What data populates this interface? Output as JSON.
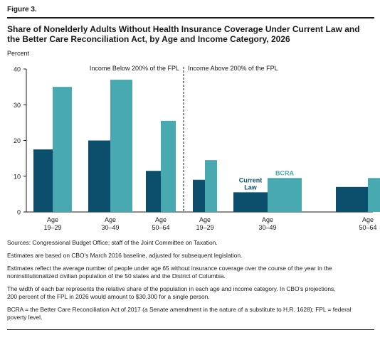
{
  "figure_label": "Figure 3.",
  "title_lines": [
    "Share of Nonelderly Adults Without Health Insurance Coverage Under Current Law and",
    "the Better Care Reconciliation Act, by Age and Income Category, 2026"
  ],
  "y_unit": "Percent",
  "chart_data": {
    "type": "bar",
    "ylabel": "Percent",
    "ylim": [
      0,
      40
    ],
    "yticks": [
      0,
      10,
      20,
      30,
      40
    ],
    "grid": false,
    "panels": [
      {
        "label": "Income Below 200% of the FPL",
        "categories": [
          {
            "line1": "Age",
            "line2": "19–29"
          },
          {
            "line1": "Age",
            "line2": "30–49"
          },
          {
            "line1": "Age",
            "line2": "50–64"
          }
        ],
        "current_law": [
          17.5,
          20,
          11.5
        ],
        "bcra": [
          35,
          37,
          25.5
        ]
      },
      {
        "label": "Income Above 200% of the FPL",
        "categories": [
          {
            "line1": "Age",
            "line2": "19–29"
          },
          {
            "line1": "Age",
            "line2": "30–49"
          },
          {
            "line1": "Age",
            "line2": "50–64"
          }
        ],
        "current_law": [
          9,
          5.5,
          7
        ],
        "bcra": [
          14.5,
          9.5,
          9.5
        ]
      }
    ],
    "series": [
      {
        "key": "current_law",
        "color": "#0b4f6c"
      },
      {
        "key": "bcra",
        "color": "#48a9b0"
      }
    ],
    "annotations": {
      "current_law": [
        "Current",
        "Law"
      ],
      "bcra": "BCRA"
    }
  },
  "notes": [
    [
      "Sources: Congressional Budget Office; staff of the Joint Committee on Taxation."
    ],
    [
      "Estimates are based on CBO’s March 2016 baseline, adjusted for subsequent legislation."
    ],
    [
      "Estimates reflect the average number of people under age 65 without insurance coverage over the course of the year in the",
      "noninstitutionalized civilian population of the 50 states and the District of Columbia."
    ],
    [
      "The width of each bar represents the relative share of the population in each age and income category. In CBO’s projections,",
      "200 percent of the FPL in 2026 would amount to $30,300 for a single person."
    ],
    [
      "BCRA = the Better Care Reconciliation Act of 2017 (a Senate amendment in the nature of a substitute to H.R. 1628); FPL = federal",
      "poverty level."
    ]
  ]
}
